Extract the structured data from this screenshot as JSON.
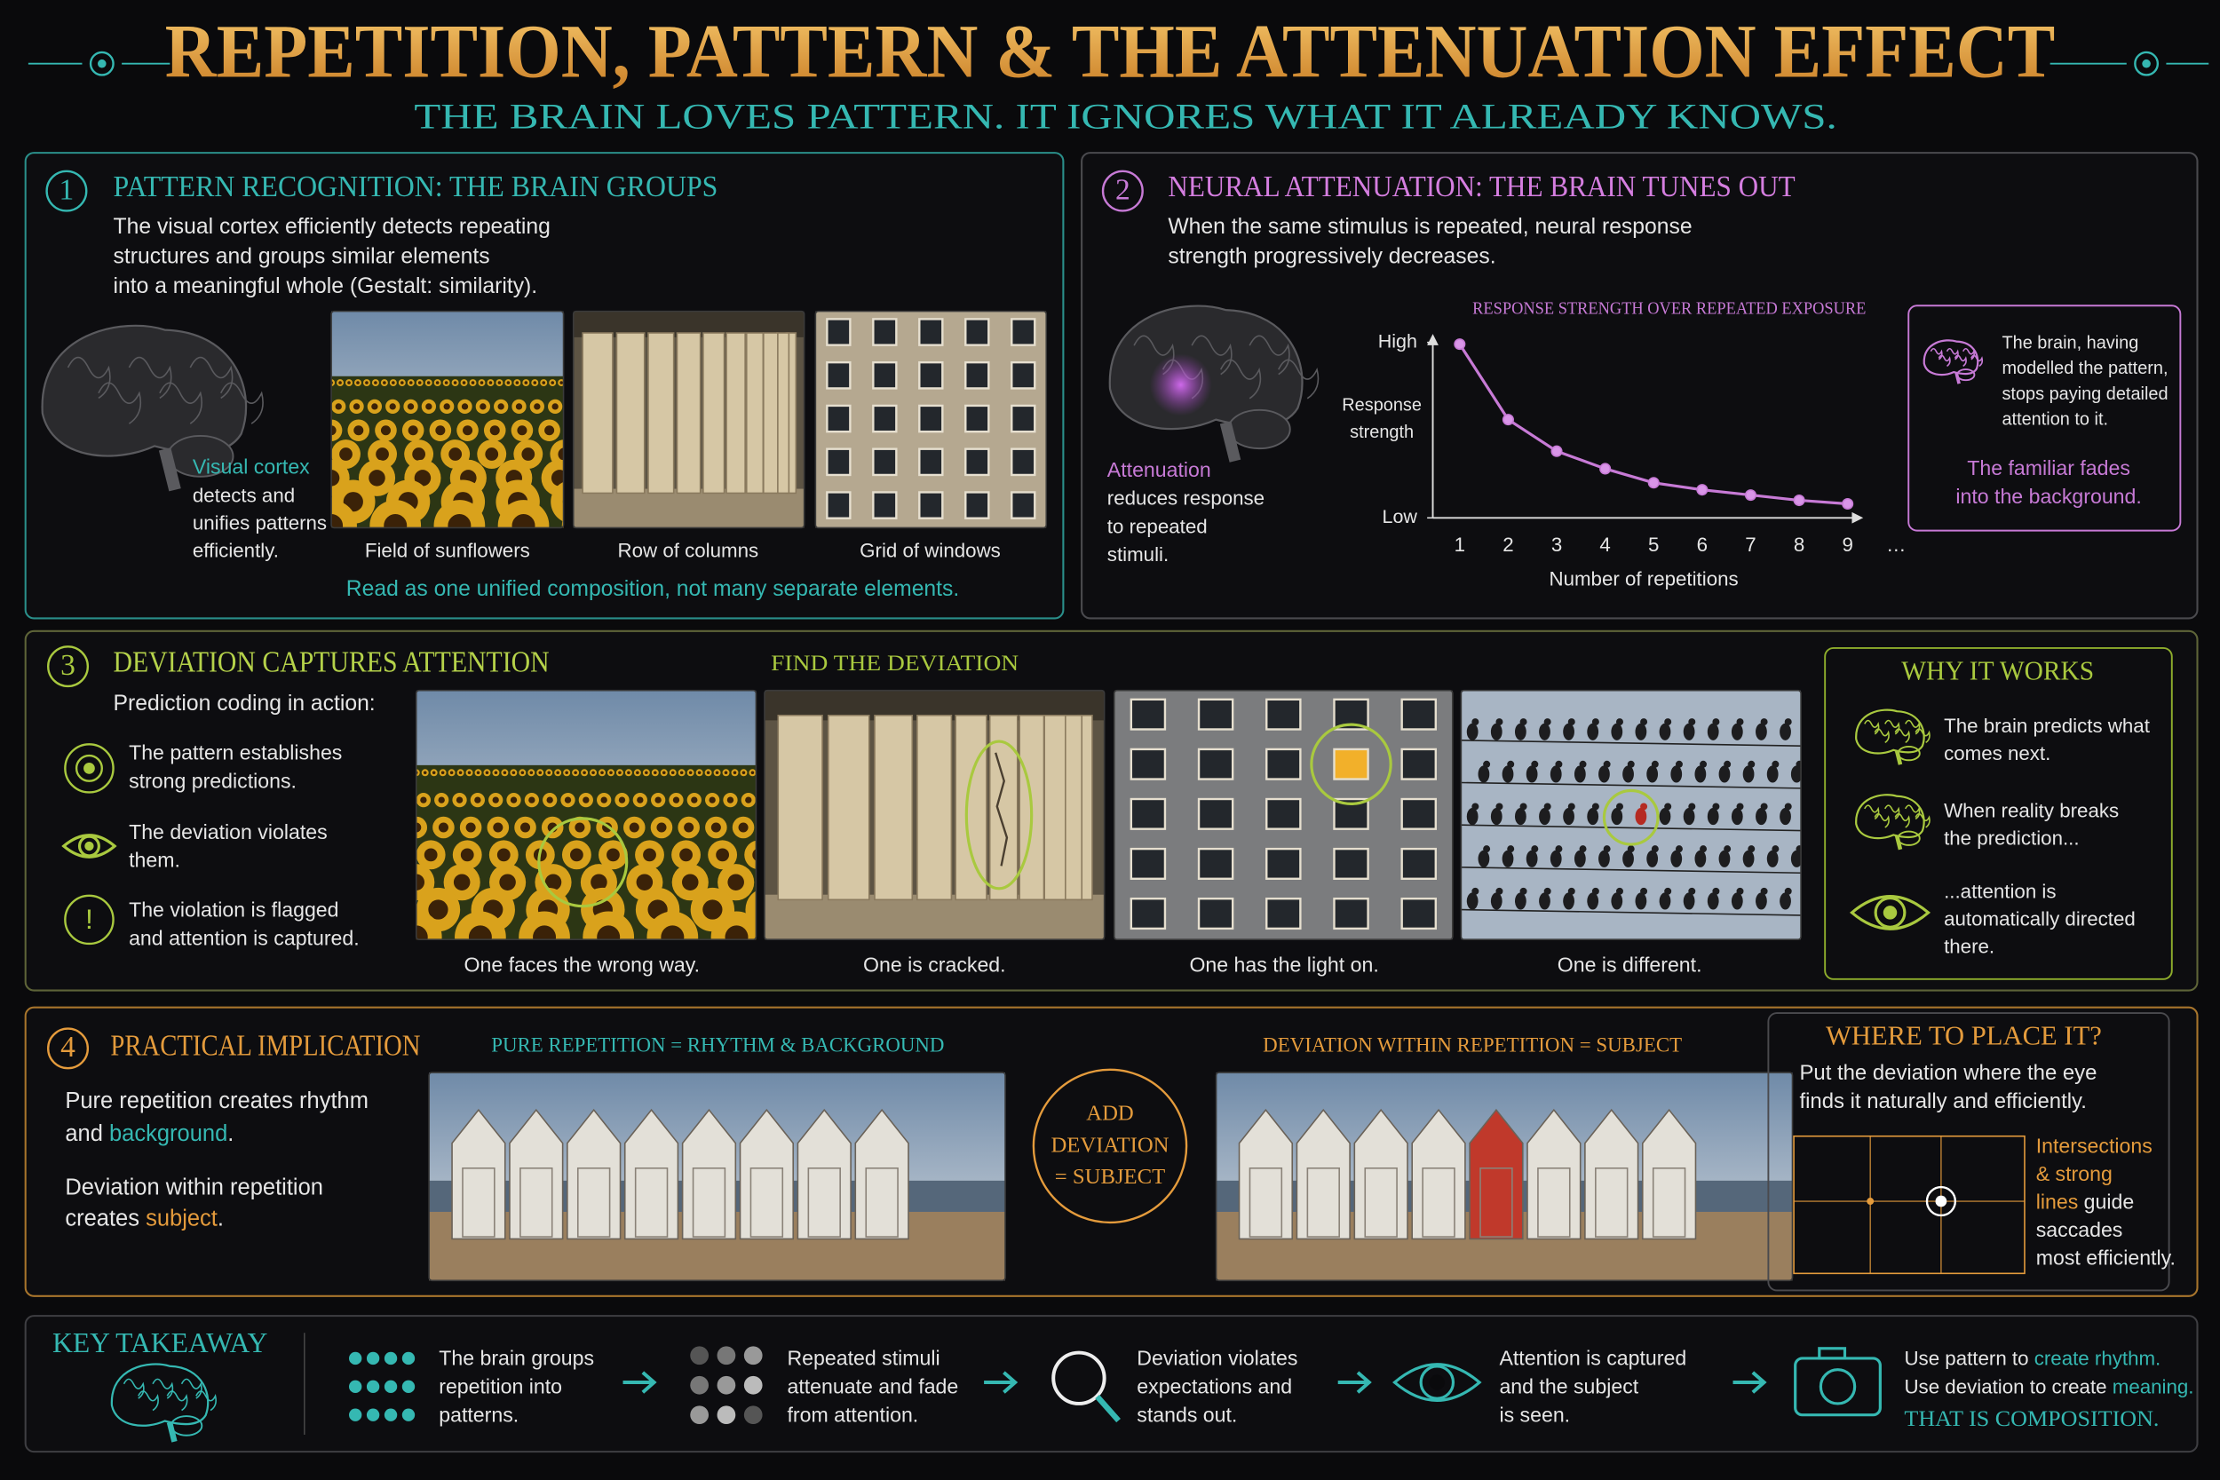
{
  "header": {
    "title": "REPETITION, PATTERN & THE ATTENUATION EFFECT",
    "subtitle": "THE BRAIN LOVES PATTERN. IT IGNORES WHAT IT ALREADY KNOWS."
  },
  "panel1": {
    "number": "1",
    "title": "PATTERN RECOGNITION: THE BRAIN GROUPS",
    "body": [
      "The visual cortex efficiently detects repeating",
      "structures and groups similar elements",
      "into a meaningful whole (Gestalt: similarity)."
    ],
    "brain_label": "Visual cortex",
    "brain_text": [
      "detects and",
      "unifies patterns",
      "efficiently."
    ],
    "captions": [
      "Field of sunflowers",
      "Row of columns",
      "Grid of windows"
    ],
    "footer": "Read as one unified composition, not many separate elements."
  },
  "panel2": {
    "number": "2",
    "title": "NEURAL ATTENUATION: THE BRAIN TUNES OUT",
    "body": [
      "When the same stimulus is repeated, neural response",
      "strength progressively decreases."
    ],
    "brain_label": "Attenuation",
    "brain_text": [
      "reduces response",
      "to repeated",
      "stimuli."
    ],
    "note": [
      "The brain, having",
      "modelled the pattern,",
      "stops paying detailed",
      "attention to it."
    ],
    "note_highlight": [
      "The familiar fades",
      "into the background."
    ]
  },
  "chart_data": {
    "type": "line",
    "title": "RESPONSE STRENGTH OVER REPEATED EXPOSURE",
    "ylabel": [
      "Response",
      "strength"
    ],
    "xlabel": "Number of repetitions",
    "categories": [
      "1",
      "2",
      "3",
      "4",
      "5",
      "6",
      "7",
      "8",
      "9",
      "…"
    ],
    "values": [
      0.99,
      0.56,
      0.38,
      0.28,
      0.2,
      0.16,
      0.13,
      0.1,
      0.08,
      null
    ],
    "color": "#c77ad6",
    "ylim": [
      0,
      1
    ],
    "yticks": [
      {
        "value": 0,
        "label": "Low"
      },
      {
        "value": 1,
        "label": "High"
      }
    ]
  },
  "panel3": {
    "number": "3",
    "title": "DEVIATION CAPTURES ATTENTION",
    "subtitle": "Prediction coding in action:",
    "steps": [
      [
        "The pattern establishes",
        "strong predictions."
      ],
      [
        "The deviation violates",
        "them."
      ],
      [
        "The violation is flagged",
        "and attention is captured."
      ]
    ],
    "alert_icon": "!",
    "find_title": "FIND THE DEVIATION",
    "captions": [
      "One faces the wrong way.",
      "One is cracked.",
      "One has the light on.",
      "One is different."
    ],
    "why_title": "WHY IT WORKS",
    "why": [
      [
        "The brain predicts what",
        "comes next."
      ],
      [
        "When reality breaks",
        "the prediction..."
      ],
      [
        "...attention is",
        "automatically directed",
        "there."
      ]
    ]
  },
  "panel4": {
    "number": "4",
    "title": "PRACTICAL IMPLICATION",
    "paragraph1": [
      "Pure repetition creates rhythm",
      [
        "and ",
        {
          "text": "background",
          "color": "#35b8b2"
        },
        "."
      ]
    ],
    "paragraph2": [
      "Deviation within repetition",
      [
        "creates ",
        {
          "text": "subject",
          "color": "#e49b3c"
        },
        "."
      ]
    ],
    "left_label": "PURE REPETITION = RHYTHM & BACKGROUND",
    "center": [
      "ADD",
      "DEVIATION",
      "= SUBJECT"
    ],
    "right_label": "DEVIATION WITHIN REPETITION = SUBJECT",
    "where_title": "WHERE TO PLACE IT?",
    "where_body": [
      "Put the deviation where the eye",
      "finds it naturally and efficiently."
    ],
    "where_highlight": [
      [
        {
          "text": "Intersections",
          "color": "#e49b3c"
        }
      ],
      [
        {
          "text": "& strong",
          "color": "#e49b3c"
        }
      ],
      [
        {
          "text": "lines",
          "color": "#e49b3c"
        },
        " guide"
      ],
      [
        "saccades"
      ],
      [
        "most efficiently."
      ]
    ]
  },
  "takeaway": {
    "title": "KEY TAKEAWAY",
    "items": [
      [
        "The brain groups",
        "repetition into",
        "patterns."
      ],
      [
        "Repeated stimuli",
        "attenuate and fade",
        "from attention."
      ],
      [
        "Deviation violates",
        "expectations and",
        "stands out."
      ],
      [
        "Attention is captured",
        "and the subject",
        "is seen."
      ],
      [
        [
          "Use pattern to ",
          {
            "text": "create rhythm.",
            "color": "#35b8b2"
          }
        ],
        [
          "Use deviation to create ",
          {
            "text": "meaning.",
            "color": "#35b8b2"
          }
        ]
      ]
    ],
    "closing": "THAT IS COMPOSITION."
  }
}
